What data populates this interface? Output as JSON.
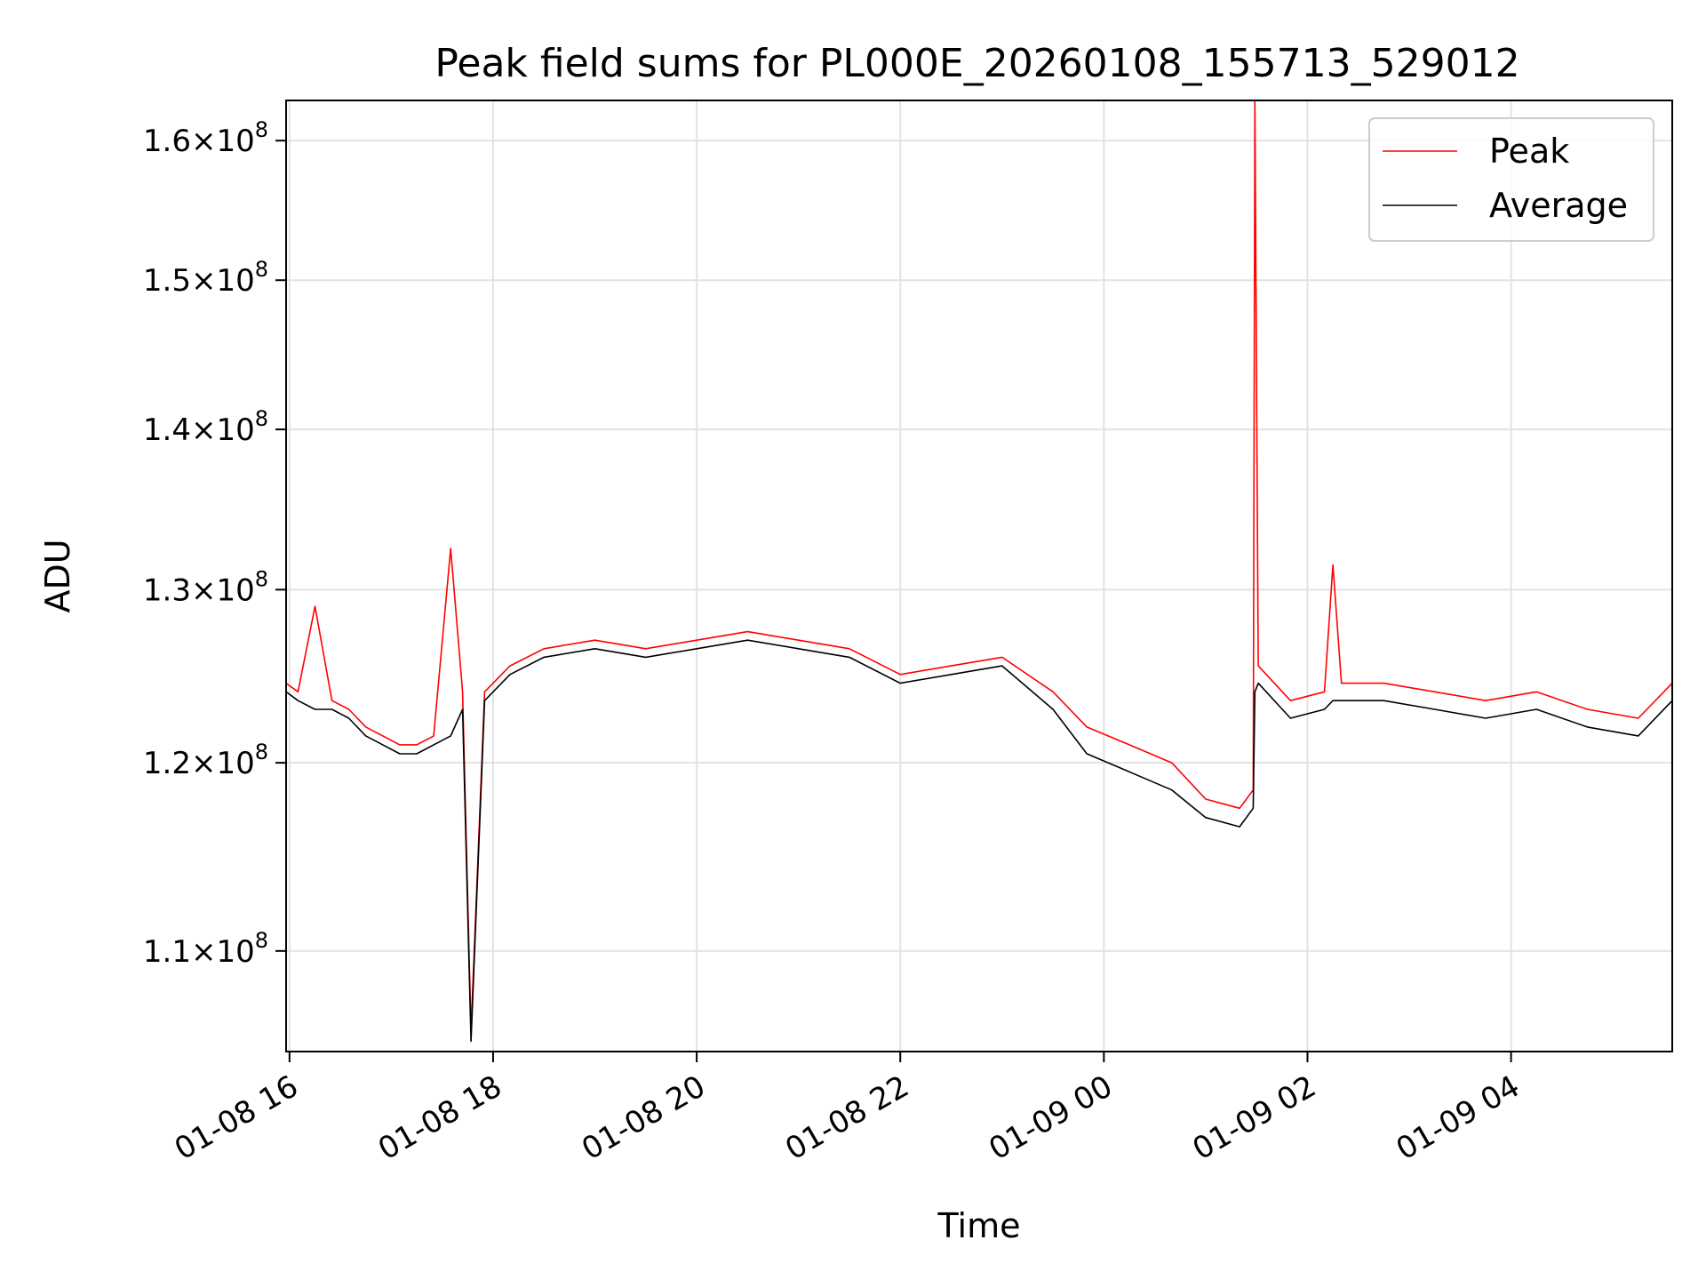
{
  "chart_data": {
    "type": "line",
    "title": "Peak field sums for PL000E_20260108_155713_529012",
    "xlabel": "Time",
    "ylabel": "ADU",
    "x_range": [
      "2026-01-08 15:58",
      "2026-01-09 05:35"
    ],
    "ylim": [
      105000000,
      163000000
    ],
    "y_scale": "log",
    "grid": true,
    "legend_position": "upper right",
    "x_ticks": [
      "01-08 16",
      "01-08 18",
      "01-08 20",
      "01-08 22",
      "01-09 00",
      "01-09 02",
      "01-09 04"
    ],
    "x_tick_values": [
      "2026-01-08 16:00",
      "2026-01-08 18:00",
      "2026-01-08 20:00",
      "2026-01-08 22:00",
      "2026-01-09 00:00",
      "2026-01-09 02:00",
      "2026-01-09 04:00"
    ],
    "y_ticks": [
      {
        "value": 110000000,
        "mantissa": "1.1",
        "exp": "8"
      },
      {
        "value": 120000000,
        "mantissa": "1.2",
        "exp": "8"
      },
      {
        "value": 130000000,
        "mantissa": "1.3",
        "exp": "8"
      },
      {
        "value": 140000000,
        "mantissa": "1.4",
        "exp": "8"
      },
      {
        "value": 150000000,
        "mantissa": "1.5",
        "exp": "8"
      },
      {
        "value": 160000000,
        "mantissa": "1.6",
        "exp": "8"
      }
    ],
    "series": [
      {
        "name": "Peak",
        "color": "#ff0000",
        "x": [
          "2026-01-08 15:58",
          "2026-01-08 16:05",
          "2026-01-08 16:15",
          "2026-01-08 16:25",
          "2026-01-08 16:35",
          "2026-01-08 16:45",
          "2026-01-08 16:55",
          "2026-01-08 17:05",
          "2026-01-08 17:15",
          "2026-01-08 17:25",
          "2026-01-08 17:35",
          "2026-01-08 17:42",
          "2026-01-08 17:47",
          "2026-01-08 17:55",
          "2026-01-08 18:10",
          "2026-01-08 18:30",
          "2026-01-08 19:00",
          "2026-01-08 19:30",
          "2026-01-08 20:00",
          "2026-01-08 20:30",
          "2026-01-08 21:00",
          "2026-01-08 21:30",
          "2026-01-08 22:00",
          "2026-01-08 22:30",
          "2026-01-08 23:00",
          "2026-01-08 23:30",
          "2026-01-08 23:50",
          "2026-01-09 00:15",
          "2026-01-09 00:40",
          "2026-01-09 01:00",
          "2026-01-09 01:20",
          "2026-01-09 01:28",
          "2026-01-09 01:29",
          "2026-01-09 01:31",
          "2026-01-09 01:50",
          "2026-01-09 02:10",
          "2026-01-09 02:15",
          "2026-01-09 02:20",
          "2026-01-09 02:45",
          "2026-01-09 03:15",
          "2026-01-09 03:45",
          "2026-01-09 04:15",
          "2026-01-09 04:45",
          "2026-01-09 05:15",
          "2026-01-09 05:35"
        ],
        "values": [
          124500000,
          124000000,
          129000000,
          123500000,
          123000000,
          122000000,
          121500000,
          121000000,
          121000000,
          121500000,
          132500000,
          124000000,
          106000000,
          124000000,
          125500000,
          126500000,
          127000000,
          126500000,
          127000000,
          127500000,
          127000000,
          126500000,
          125000000,
          125500000,
          126000000,
          124000000,
          122000000,
          121000000,
          120000000,
          118000000,
          117500000,
          118500000,
          163000000,
          125500000,
          123500000,
          124000000,
          131500000,
          124500000,
          124500000,
          124000000,
          123500000,
          124000000,
          123000000,
          122500000,
          124500000
        ]
      },
      {
        "name": "Average",
        "color": "#000000",
        "x": [
          "2026-01-08 15:58",
          "2026-01-08 16:05",
          "2026-01-08 16:15",
          "2026-01-08 16:25",
          "2026-01-08 16:35",
          "2026-01-08 16:45",
          "2026-01-08 16:55",
          "2026-01-08 17:05",
          "2026-01-08 17:15",
          "2026-01-08 17:25",
          "2026-01-08 17:35",
          "2026-01-08 17:42",
          "2026-01-08 17:47",
          "2026-01-08 17:55",
          "2026-01-08 18:10",
          "2026-01-08 18:30",
          "2026-01-08 19:00",
          "2026-01-08 19:30",
          "2026-01-08 20:00",
          "2026-01-08 20:30",
          "2026-01-08 21:00",
          "2026-01-08 21:30",
          "2026-01-08 22:00",
          "2026-01-08 22:30",
          "2026-01-08 23:00",
          "2026-01-08 23:30",
          "2026-01-08 23:50",
          "2026-01-09 00:15",
          "2026-01-09 00:40",
          "2026-01-09 01:00",
          "2026-01-09 01:20",
          "2026-01-09 01:28",
          "2026-01-09 01:29",
          "2026-01-09 01:31",
          "2026-01-09 01:50",
          "2026-01-09 02:10",
          "2026-01-09 02:15",
          "2026-01-09 02:20",
          "2026-01-09 02:45",
          "2026-01-09 03:15",
          "2026-01-09 03:45",
          "2026-01-09 04:15",
          "2026-01-09 04:45",
          "2026-01-09 05:15",
          "2026-01-09 05:35"
        ],
        "values": [
          124000000,
          123500000,
          123000000,
          123000000,
          122500000,
          121500000,
          121000000,
          120500000,
          120500000,
          121000000,
          121500000,
          123000000,
          105500000,
          123500000,
          125000000,
          126000000,
          126500000,
          126000000,
          126500000,
          127000000,
          126500000,
          126000000,
          124500000,
          125000000,
          125500000,
          123000000,
          120500000,
          119500000,
          118500000,
          117000000,
          116500000,
          117500000,
          124000000,
          124500000,
          122500000,
          123000000,
          123500000,
          123500000,
          123500000,
          123000000,
          122500000,
          123000000,
          122000000,
          121500000,
          123500000
        ]
      }
    ]
  }
}
